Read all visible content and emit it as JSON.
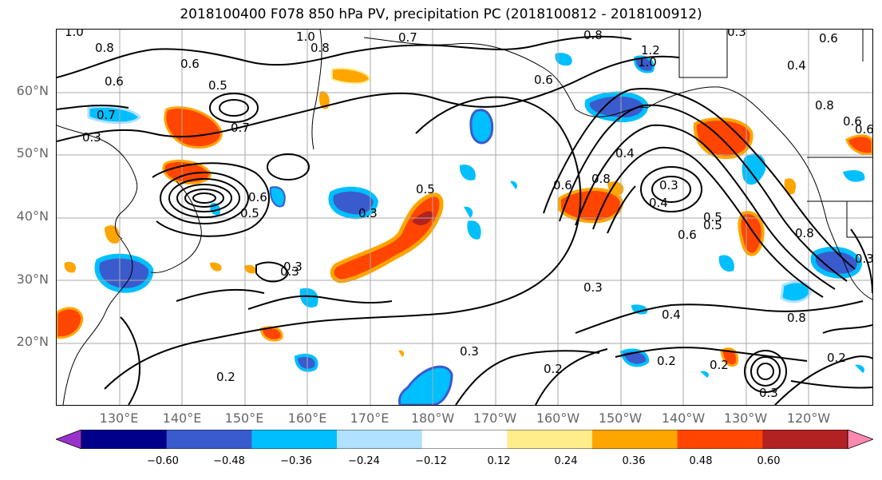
{
  "title": "2018100400 F078 850 hPa PV, precipitation PC (2018100812 - 2018100912)",
  "lat_labels": [
    "60°N",
    "50°N",
    "40°N",
    "30°N",
    "20°N"
  ],
  "lon_labels": [
    "130°E",
    "140°E",
    "150°E",
    "160°E",
    "170°E",
    "180°W",
    "170°W",
    "160°W",
    "150°W",
    "140°W",
    "130°W",
    "120°W"
  ],
  "contour_labels": [
    "1.0",
    "0.8",
    "1.0",
    "0.8",
    "0.7",
    "0.8",
    "1.2",
    "1.0",
    "0.3",
    "0.6",
    "0.6",
    "0.5",
    "0.7",
    "0.6",
    "0.4",
    "0.7",
    "0.3",
    "0.6",
    "0.5",
    "0.3",
    "0.5",
    "0.6",
    "0.8",
    "0.4",
    "0.3",
    "0.5",
    "0.3",
    "0.3",
    "0.4",
    "0.6",
    "0.5",
    "0.6",
    "0.8",
    "0.3",
    "0.3",
    "0.2",
    "0.2",
    "0.2",
    "0.2",
    "0.8",
    "0.2",
    "0.8",
    "0.3",
    "0.4",
    "0.3",
    "0.6",
    "0.6"
  ],
  "colorbar": {
    "ticks": [
      "−0.60",
      "−0.48",
      "−0.36",
      "−0.24",
      "−0.12",
      "0.12",
      "0.24",
      "0.36",
      "0.48",
      "0.60"
    ],
    "colors": [
      "#9932cc",
      "#00008b",
      "#3a5bcd",
      "#00bfff",
      "#b0e2ff",
      "#ffffff",
      "#ffec8b",
      "#ffa500",
      "#ff4500",
      "#b22222",
      "#ff88b0"
    ]
  },
  "colors": {
    "neg_strong": "#3a5bcd",
    "neg_mid": "#00bfff",
    "neg_weak": "#b0e2ff",
    "pos_weak": "#ffec8b",
    "pos_mid": "#ffa500",
    "pos_strong": "#ff4500",
    "pos_vstrong": "#b22222",
    "contour": "#000000",
    "grid": "#a9a9a9"
  }
}
